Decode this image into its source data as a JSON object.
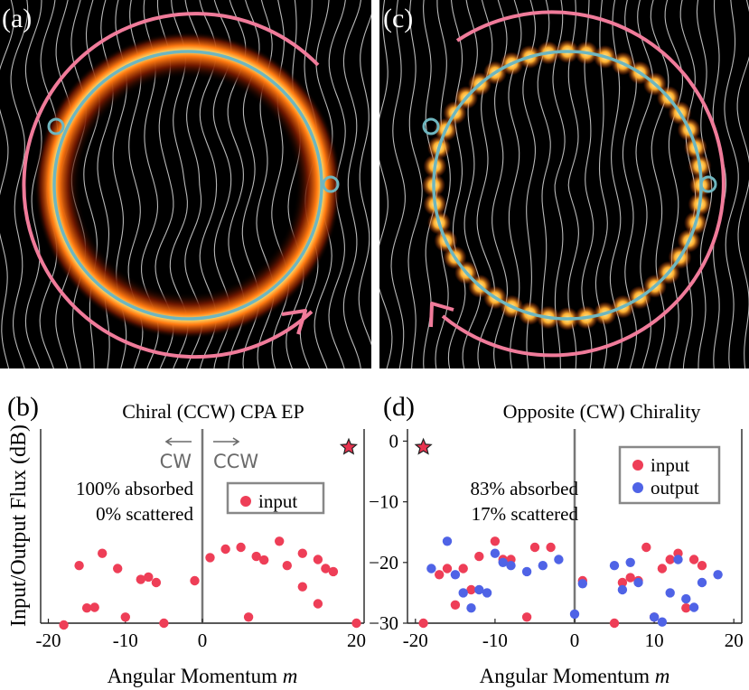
{
  "panels": {
    "a": {
      "label": "(a)"
    },
    "c": {
      "label": "(c)"
    }
  },
  "colors": {
    "arrow_pink": "#f07b9a",
    "ring_cyan": "#6fb6bf",
    "input_red": "#ee3e57",
    "output_blue": "#4f63e6",
    "axis_gray": "#777777",
    "star_red": "#e8334f"
  },
  "shared": {
    "ylabel": "Input/Output Flux (dB)",
    "xlabel_prefix": "Angular Momentum ",
    "xlabel_var": "m"
  },
  "chart_data": [
    {
      "type": "scatter",
      "panel_label": "(b)",
      "title": "Chiral (CCW) CPA EP",
      "xlim": [
        -21,
        21
      ],
      "ylim": [
        -30,
        2
      ],
      "xticks": [
        -20,
        -10,
        0,
        20
      ],
      "xtick_labels": [
        "-20",
        "-10",
        "0",
        "20"
      ],
      "direction_labels": {
        "left": "CW",
        "right": "CCW"
      },
      "annotation_lines": [
        "100% absorbed",
        "0% scattered"
      ],
      "legend": [
        "input"
      ],
      "star": {
        "x": 19,
        "y": -1
      },
      "series": [
        {
          "name": "input",
          "x": [
            -18,
            -16,
            -15,
            -14,
            -13,
            -11,
            -10,
            -8,
            -7,
            -6,
            -5,
            -1,
            1,
            3,
            5,
            6,
            7,
            8,
            10,
            11,
            13,
            13,
            15,
            15,
            16,
            17,
            20
          ],
          "y": [
            -31,
            -20.5,
            -27.5,
            -27.4,
            -18.5,
            -21,
            -29,
            -22.8,
            -22.4,
            -23.3,
            -30,
            -23,
            -19.2,
            -17.8,
            -17.5,
            -29,
            -19,
            -19.6,
            -16.5,
            -20.5,
            -24,
            -18.5,
            -26.8,
            -19.5,
            -21,
            -21.5,
            -30
          ]
        }
      ]
    },
    {
      "type": "scatter",
      "panel_label": "(d)",
      "title": "Opposite (CW) Chirality",
      "xlim": [
        -21,
        21
      ],
      "ylim": [
        -30,
        2
      ],
      "xticks": [
        -20,
        -10,
        0,
        10,
        20
      ],
      "xtick_labels": [
        "-20",
        "-10",
        "0",
        "10",
        "20"
      ],
      "yticks": [
        0,
        -10,
        -20,
        -30
      ],
      "ytick_labels": [
        "0",
        "−10",
        "−20",
        "−30"
      ],
      "annotation_lines": [
        "83% absorbed",
        "17% scattered"
      ],
      "legend": [
        "input",
        "output"
      ],
      "star": {
        "x": -19,
        "y": -1
      },
      "series": [
        {
          "name": "input",
          "x": [
            -19,
            -17,
            -16,
            -15,
            -14,
            -13,
            -12,
            -10,
            -9,
            -8,
            -6,
            -5,
            -3,
            1,
            5,
            6,
            7,
            8,
            9,
            10,
            11,
            12,
            13,
            14,
            15,
            16
          ],
          "y": [
            -30,
            -22,
            -21,
            -27,
            -21,
            -24.5,
            -19,
            -16.5,
            -19.5,
            -19.5,
            -29,
            -17.5,
            -17.5,
            -23,
            -30,
            -23.3,
            -22.5,
            -23,
            -17.5,
            -29,
            -21,
            -19.5,
            -18.5,
            -27.5,
            -19.5,
            -20.5
          ]
        },
        {
          "name": "output",
          "x": [
            -18,
            -16,
            -15,
            -14,
            -13,
            -12,
            -11,
            -10,
            -9,
            -8,
            -6,
            -4,
            -2,
            0,
            1,
            5,
            6,
            7,
            8,
            10,
            11,
            12,
            13,
            14,
            15,
            16,
            18
          ],
          "y": [
            -21,
            -16.5,
            -22,
            -25,
            -27.5,
            -24.5,
            -25,
            -18.5,
            -20,
            -20.5,
            -21.5,
            -20.5,
            -19.5,
            -28.5,
            -23.5,
            -20.5,
            -24.5,
            -20,
            -23.3,
            -29,
            -29.8,
            -25,
            -19.5,
            -26,
            -27.4,
            -23.3,
            -22
          ]
        }
      ]
    }
  ]
}
